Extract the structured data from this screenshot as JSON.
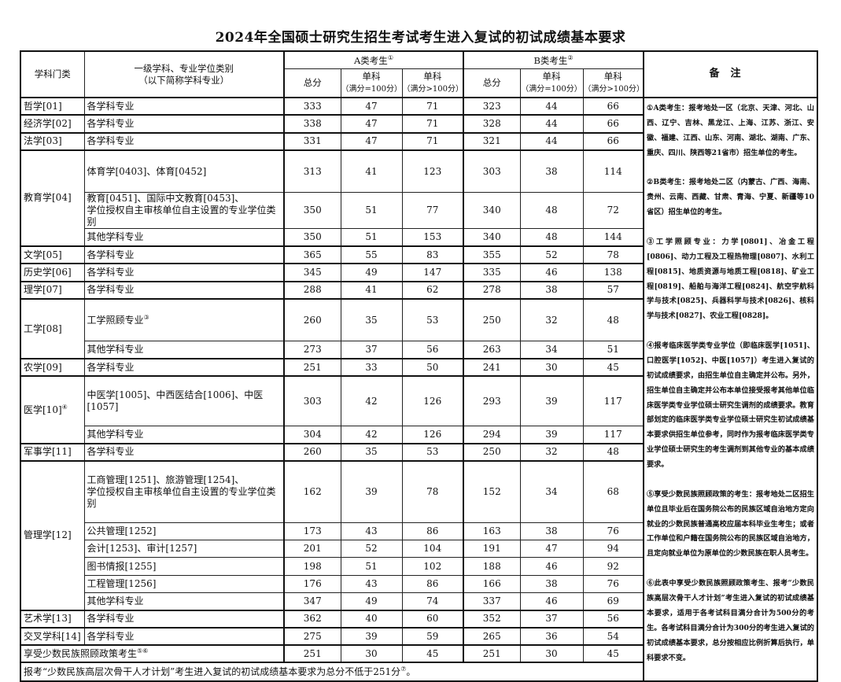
{
  "title": "2024年全国硕士研究生招生考试考生进入复试的初试成绩基本要求",
  "header": {
    "category": "学科门类",
    "subject_line1": "一级学科、专业学位类别",
    "subject_line2": "（以下简称学科专业）",
    "group_a": "A类考生",
    "group_a_sup": "①",
    "group_b": "B类考生",
    "group_b_sup": "②",
    "total": "总分",
    "single": "单科",
    "full100": "（满分=100分）",
    "full_over100": "（满分>100分）",
    "remarks": "备注"
  },
  "groups": [
    {
      "category": "哲学[01]",
      "rows": [
        {
          "subject": "各学科专业",
          "a": [
            "333",
            "47",
            "71"
          ],
          "b": [
            "323",
            "44",
            "66"
          ]
        }
      ]
    },
    {
      "category": "经济学[02]",
      "rows": [
        {
          "subject": "各学科专业",
          "a": [
            "338",
            "47",
            "71"
          ],
          "b": [
            "328",
            "44",
            "66"
          ]
        }
      ]
    },
    {
      "category": "法学[03]",
      "rows": [
        {
          "subject": "各学科专业",
          "a": [
            "331",
            "47",
            "71"
          ],
          "b": [
            "321",
            "44",
            "66"
          ]
        }
      ]
    },
    {
      "category": "教育学[04]",
      "rows": [
        {
          "subject": "体育学[0403]、体育[0452]",
          "a": [
            "313",
            "41",
            "123"
          ],
          "b": [
            "303",
            "38",
            "114"
          ]
        },
        {
          "subject": "教育[0451]、国际中文教育[0453]、",
          "subject2": "学位授权自主审核单位自主设置的专业学位类别",
          "a": [
            "350",
            "51",
            "77"
          ],
          "b": [
            "340",
            "48",
            "72"
          ]
        },
        {
          "subject": "其他学科专业",
          "a": [
            "350",
            "51",
            "153"
          ],
          "b": [
            "340",
            "48",
            "144"
          ]
        }
      ]
    },
    {
      "category": "文学[05]",
      "rows": [
        {
          "subject": "各学科专业",
          "a": [
            "365",
            "55",
            "83"
          ],
          "b": [
            "355",
            "52",
            "78"
          ]
        }
      ]
    },
    {
      "category": "历史学[06]",
      "rows": [
        {
          "subject": "各学科专业",
          "a": [
            "345",
            "49",
            "147"
          ],
          "b": [
            "335",
            "46",
            "138"
          ]
        }
      ]
    },
    {
      "category": "理学[07]",
      "rows": [
        {
          "subject": "各学科专业",
          "a": [
            "288",
            "41",
            "62"
          ],
          "b": [
            "278",
            "38",
            "57"
          ]
        }
      ]
    },
    {
      "category": "工学[08]",
      "rows": [
        {
          "subject": "工学照顾专业",
          "sup": "③",
          "a": [
            "260",
            "35",
            "53"
          ],
          "b": [
            "250",
            "32",
            "48"
          ]
        },
        {
          "subject": "其他学科专业",
          "a": [
            "273",
            "37",
            "56"
          ],
          "b": [
            "263",
            "34",
            "51"
          ]
        }
      ]
    },
    {
      "category": "农学[09]",
      "rows": [
        {
          "subject": "各学科专业",
          "a": [
            "251",
            "33",
            "50"
          ],
          "b": [
            "241",
            "30",
            "45"
          ]
        }
      ]
    },
    {
      "category": "医学[10]",
      "sup": "④",
      "rows": [
        {
          "subject": "中医学[1005]、中西医结合[1006]、中医[1057]",
          "a": [
            "303",
            "42",
            "126"
          ],
          "b": [
            "293",
            "39",
            "117"
          ]
        },
        {
          "subject": "其他学科专业",
          "a": [
            "304",
            "42",
            "126"
          ],
          "b": [
            "294",
            "39",
            "117"
          ]
        }
      ]
    },
    {
      "category": "军事学[11]",
      "rows": [
        {
          "subject": "各学科专业",
          "a": [
            "260",
            "35",
            "53"
          ],
          "b": [
            "250",
            "32",
            "48"
          ]
        }
      ]
    },
    {
      "category": "管理学[12]",
      "rows": [
        {
          "subject": "工商管理[1251]、旅游管理[1254]、",
          "subject2": "学位授权自主审核单位自主设置的专业学位类别",
          "a": [
            "162",
            "39",
            "78"
          ],
          "b": [
            "152",
            "34",
            "68"
          ]
        },
        {
          "subject": "公共管理[1252]",
          "a": [
            "173",
            "43",
            "86"
          ],
          "b": [
            "163",
            "38",
            "76"
          ]
        },
        {
          "subject": "会计[1253]、审计[1257]",
          "a": [
            "201",
            "52",
            "104"
          ],
          "b": [
            "191",
            "47",
            "94"
          ]
        },
        {
          "subject": "图书情报[1255]",
          "a": [
            "198",
            "51",
            "102"
          ],
          "b": [
            "188",
            "46",
            "92"
          ]
        },
        {
          "subject": "工程管理[1256]",
          "a": [
            "176",
            "43",
            "86"
          ],
          "b": [
            "166",
            "38",
            "76"
          ]
        },
        {
          "subject": "其他学科专业",
          "a": [
            "347",
            "49",
            "74"
          ],
          "b": [
            "337",
            "46",
            "69"
          ]
        }
      ]
    },
    {
      "category": "艺术学[13]",
      "rows": [
        {
          "subject": "各学科专业",
          "a": [
            "362",
            "40",
            "60"
          ],
          "b": [
            "352",
            "37",
            "56"
          ]
        }
      ]
    },
    {
      "category": "交叉学科[14]",
      "rows": [
        {
          "subject": "各学科专业",
          "a": [
            "275",
            "39",
            "59"
          ],
          "b": [
            "265",
            "36",
            "54"
          ]
        }
      ]
    }
  ],
  "minority_row": {
    "label": "享受少数民族照顾政策考生",
    "sup": "⑤⑥",
    "a": [
      "251",
      "30",
      "45"
    ],
    "b": [
      "251",
      "30",
      "45"
    ]
  },
  "footer": {
    "text": "报考“少数民族高层次骨干人才计划”考生进入复试的初试成绩基本要求为总分不低于251分",
    "sup": "⑦",
    "end": "。"
  },
  "remarks": [
    "①A类考生：报考地处一区（北京、天津、河北、山西、辽宁、吉林、黑龙江、上海、江苏、浙江、安徽、福建、江西、山东、河南、湖北、湖南、广东、重庆、四川、陕西等21省市）招生单位的考生。",
    "②B类考生：报考地处二区（内蒙古、广西、海南、贵州、云南、西藏、甘肃、青海、宁夏、新疆等10省区）招生单位的考生。",
    "③工学照顾专业：力学[0801]、冶金工程[0806]、动力工程及工程热物理[0807]、水利工程[0815]、地质资源与地质工程[0818]、矿业工程[0819]、船舶与海洋工程[0824]、航空宇航科学与技术[0825]、兵器科学与技术[0826]、核科学与技术[0827]、农业工程[0828]。",
    "④报考临床医学类专业学位（即临床医学[1051]、口腔医学[1052]、中医[1057]）考生进入复试的初试成绩要求，由招生单位自主确定并公布。另外，招生单位自主确定并公布本单位接受报考其他单位临床医学类专业学位硕士研究生调剂的成绩要求。教育部划定的临床医学类专业学位硕士研究生初试成绩基本要求供招生单位参考，同时作为报考临床医学类专业学位硕士研究生的考生调剂到其他专业的基本成绩要求。",
    "⑤享受少数民族照顾政策的考生：报考地处二区招生单位且毕业后在国务院公布的民族区域自治地方定向就业的少数民族普通高校应届本科毕业生考生；或者工作单位和户籍在国务院公布的民族区域自治地方，且定向就业单位为原单位的少数民族在职人员考生。",
    "⑥此表中享受少数民族照顾政策考生、报考“少数民族高层次骨干人才计划”考生进入复试的初试成绩基本要求，适用于各考试科目满分合计为500分的考生。各考试科目满分合计为300分的考生进入复试的初试成绩基本要求，总分按相应比例折算后执行，单科要求不变。"
  ]
}
